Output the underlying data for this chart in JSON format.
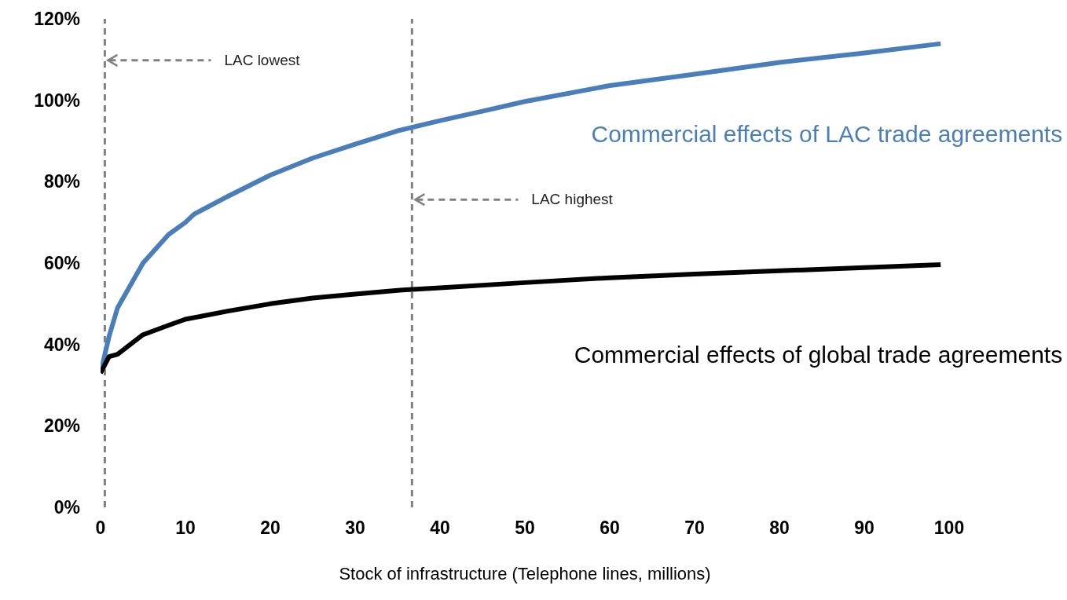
{
  "chart_data": {
    "type": "line",
    "xlabel": "Stock of infrastructure (Telephone lines, millions)",
    "xlim": [
      0,
      100
    ],
    "xticks": [
      0,
      10,
      20,
      30,
      40,
      50,
      60,
      70,
      80,
      90,
      100
    ],
    "ylim": [
      0,
      120
    ],
    "yticks": [
      {
        "value": 0,
        "label": "0%"
      },
      {
        "value": 20,
        "label": "20%"
      },
      {
        "value": 40,
        "label": "40%"
      },
      {
        "value": 60,
        "label": "60%"
      },
      {
        "value": 80,
        "label": "80%"
      },
      {
        "value": 100,
        "label": "100%"
      },
      {
        "value": 120,
        "label": "120%"
      }
    ],
    "grid": false,
    "legend": false,
    "marker": "none",
    "line_style": "solid",
    "series": [
      {
        "name": "Commercial effects of LAC trade agreements",
        "color": "#4a7ebb",
        "x": [
          0,
          1,
          2,
          5,
          8,
          10,
          11,
          15,
          20,
          25,
          30,
          35,
          40,
          45,
          50,
          60,
          70,
          80,
          90,
          99
        ],
        "values": [
          33,
          42,
          49,
          60,
          67,
          70,
          72,
          76.4,
          81.6,
          85.8,
          89.2,
          92.5,
          95,
          97.3,
          99.7,
          103.6,
          106.4,
          109.3,
          111.6,
          113.9
        ]
      },
      {
        "name": "Commercial effects of global trade agreements",
        "color": "#000000",
        "x": [
          0,
          1,
          2,
          5,
          8,
          10,
          15,
          20,
          25,
          30,
          35,
          40,
          50,
          60,
          70,
          80,
          90,
          99
        ],
        "values": [
          33,
          37,
          37.6,
          42.4,
          44.7,
          46.2,
          48.2,
          50,
          51.4,
          52.4,
          53.3,
          53.9,
          55.2,
          56.4,
          57.3,
          58.1,
          58.9,
          59.6
        ]
      }
    ],
    "ref_lines": [
      {
        "axis": "x",
        "value": 0.5,
        "label": "LAC lowest",
        "color": "#808080",
        "line_style": "dashed"
      },
      {
        "axis": "x",
        "value": 36.7,
        "label": "LAC highest",
        "color": "#808080",
        "line_style": "dashed"
      }
    ]
  }
}
